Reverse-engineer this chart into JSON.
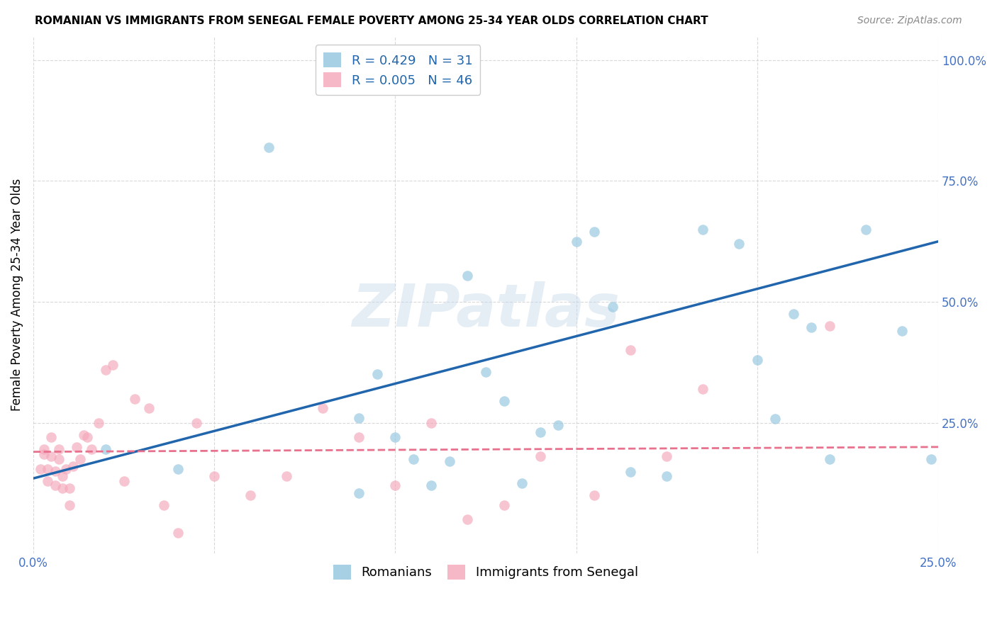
{
  "title": "ROMANIAN VS IMMIGRANTS FROM SENEGAL FEMALE POVERTY AMONG 25-34 YEAR OLDS CORRELATION CHART",
  "source": "Source: ZipAtlas.com",
  "ylabel": "Female Poverty Among 25-34 Year Olds",
  "y_tick_labels": [
    "100.0%",
    "75.0%",
    "50.0%",
    "25.0%"
  ],
  "y_tick_values": [
    1.0,
    0.75,
    0.5,
    0.25
  ],
  "xlim": [
    0.0,
    0.25
  ],
  "ylim": [
    -0.02,
    1.05
  ],
  "legend_r1": "R = 0.429",
  "legend_n1": "N = 31",
  "legend_r2": "R = 0.005",
  "legend_n2": "N = 46",
  "blue_color": "#92c5de",
  "pink_color": "#f4a7b9",
  "blue_line_color": "#2166ac",
  "pink_line_color": "#e8718d",
  "watermark_text": "ZIPatlas",
  "blue_scatter_x": [
    0.02,
    0.04,
    0.065,
    0.09,
    0.09,
    0.095,
    0.1,
    0.105,
    0.11,
    0.115,
    0.12,
    0.125,
    0.13,
    0.135,
    0.14,
    0.145,
    0.15,
    0.155,
    0.16,
    0.165,
    0.175,
    0.185,
    0.195,
    0.2,
    0.205,
    0.21,
    0.215,
    0.22,
    0.23,
    0.24,
    0.248
  ],
  "blue_scatter_y": [
    0.195,
    0.155,
    0.82,
    0.26,
    0.105,
    0.35,
    0.22,
    0.175,
    0.12,
    0.17,
    0.555,
    0.355,
    0.295,
    0.125,
    0.23,
    0.245,
    0.625,
    0.645,
    0.49,
    0.148,
    0.14,
    0.65,
    0.62,
    0.38,
    0.258,
    0.475,
    0.448,
    0.175,
    0.65,
    0.44,
    0.175
  ],
  "pink_scatter_x": [
    0.002,
    0.003,
    0.003,
    0.004,
    0.004,
    0.005,
    0.005,
    0.006,
    0.006,
    0.007,
    0.007,
    0.008,
    0.008,
    0.009,
    0.01,
    0.01,
    0.011,
    0.012,
    0.013,
    0.014,
    0.015,
    0.016,
    0.018,
    0.02,
    0.022,
    0.025,
    0.028,
    0.032,
    0.036,
    0.04,
    0.045,
    0.05,
    0.06,
    0.07,
    0.08,
    0.09,
    0.1,
    0.11,
    0.12,
    0.13,
    0.14,
    0.155,
    0.165,
    0.175,
    0.185,
    0.22
  ],
  "pink_scatter_y": [
    0.155,
    0.195,
    0.185,
    0.13,
    0.155,
    0.22,
    0.18,
    0.15,
    0.12,
    0.195,
    0.175,
    0.115,
    0.14,
    0.155,
    0.08,
    0.115,
    0.16,
    0.2,
    0.175,
    0.225,
    0.22,
    0.196,
    0.25,
    0.36,
    0.37,
    0.13,
    0.3,
    0.28,
    0.08,
    0.022,
    0.25,
    0.14,
    0.1,
    0.14,
    0.28,
    0.22,
    0.12,
    0.25,
    0.05,
    0.08,
    0.18,
    0.1,
    0.4,
    0.18,
    0.32,
    0.45
  ],
  "blue_trend_x": [
    0.0,
    0.25
  ],
  "blue_trend_y": [
    0.135,
    0.625
  ],
  "pink_trend_x": [
    0.0,
    0.25
  ],
  "pink_trend_y": [
    0.19,
    0.2
  ],
  "background_color": "#ffffff",
  "grid_color": "#d0d0d0",
  "grid_style": "--",
  "title_fontsize": 11,
  "source_fontsize": 10,
  "tick_fontsize": 12,
  "ylabel_fontsize": 12
}
